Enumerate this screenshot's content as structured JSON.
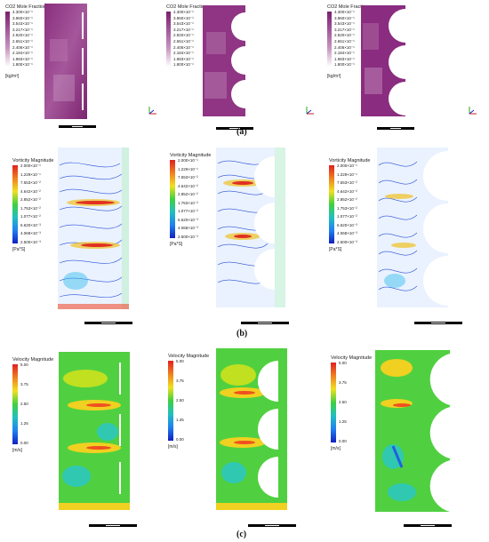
{
  "captions": {
    "a": "(a)",
    "b": "(b)",
    "c": "(c)"
  },
  "row_a": {
    "legend_title": "CO2 Mole Fraction",
    "unit": "[kg/m³]",
    "ticks": [
      "4.300×10⁻¹",
      "3.960×10⁻¹",
      "3.543×10⁻¹",
      "3.217×10⁻¹",
      "2.920×10⁻¹",
      "2.651×10⁻¹",
      "2.406×10⁻¹",
      "2.184×10⁻¹",
      "1.983×10⁻¹",
      "1.800×10⁻¹"
    ],
    "colors": {
      "low": "#ffffff",
      "high": "#7a1f6d"
    }
  },
  "row_b": {
    "legend_title": "Vorticity Magnitude",
    "unit": "[Pa*S]",
    "ticks": [
      "2.000×10⁻¹",
      "1.229×10⁻¹",
      "7.553×10⁻²",
      "4.642×10⁻²",
      "2.852×10⁻²",
      "1.753×10⁻²",
      "1.077×10⁻²",
      "6.620×10⁻³",
      "4.068×10⁻³",
      "2.500×10⁻³"
    ]
  },
  "row_c": {
    "legend_title": "Velocity Magnitude",
    "unit": "[m/s]",
    "ticks": [
      "5.00",
      "3.75",
      "2.50",
      "1.25",
      "0.00"
    ]
  },
  "scale": {
    "a": "0",
    "b": "250.00",
    "c": "500.00",
    "unit": "(m)",
    "d": "125.00",
    "e": "375.00"
  }
}
